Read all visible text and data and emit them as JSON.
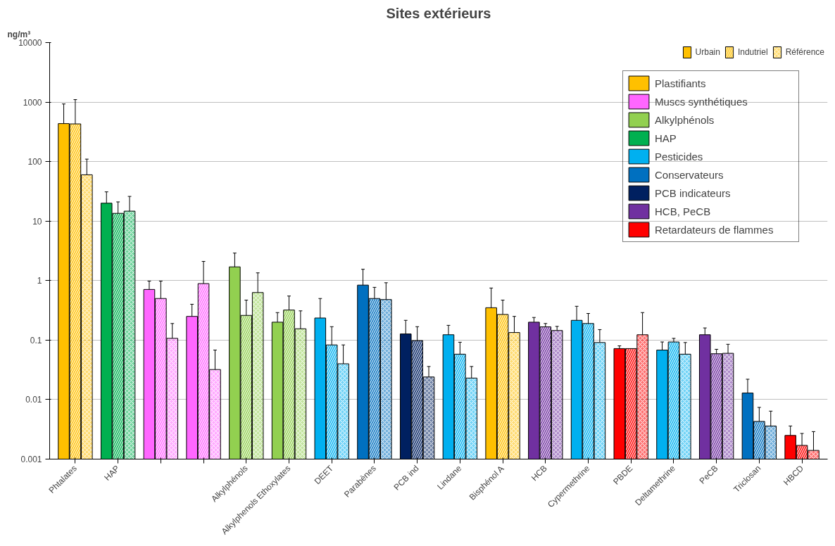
{
  "chart_data": {
    "type": "bar",
    "title": "Sites extérieurs",
    "ylabel": "ng/m³",
    "log": true,
    "grid": "y",
    "legend": "top right",
    "ylim": [
      0.001,
      10000
    ],
    "yticks": [
      0.001,
      0.01,
      0.1,
      1,
      10,
      100,
      1000,
      10000
    ],
    "categories": [
      "Phtalates",
      "HAP",
      null,
      null,
      "Alkylphénols",
      "Alkylphenols Ethoxylates",
      "DEET",
      "Parabènes",
      "PCB ind",
      "Lindane",
      "Bisphénol A",
      "HCB",
      "Cypermethrine",
      "PBDE",
      "Deltamethrine",
      "PeCB",
      "Triclosan",
      "HBCD"
    ],
    "series": [
      {
        "name": "Urbain",
        "colors": [
          "#ffc000",
          "#00b050",
          "#ff66ff",
          "#ff66ff",
          "#92d050",
          "#92d050",
          "#00b0f0",
          "#0070c0",
          "#002060",
          "#00b0f0",
          "#ffc000",
          "#7030a0",
          "#00b0f0",
          "#ff0000",
          "#00b0f0",
          "#7030a0",
          "#0070c0",
          "#ff0000"
        ],
        "values": [
          435,
          20,
          0.71,
          0.25,
          1.7,
          0.2,
          0.235,
          0.84,
          0.127,
          0.123,
          0.35,
          0.2,
          0.215,
          0.072,
          0.068,
          0.123,
          0.0129,
          0.0025
        ],
        "errors": [
          [
            435,
            930
          ],
          [
            20,
            31
          ],
          [
            0.71,
            0.98
          ],
          [
            0.25,
            0.4
          ],
          [
            1.7,
            2.9
          ],
          [
            0.2,
            0.29
          ],
          [
            0.235,
            0.5
          ],
          [
            0.84,
            1.55
          ],
          [
            0.127,
            0.215
          ],
          [
            0.123,
            0.177
          ],
          [
            0.35,
            0.75
          ],
          [
            0.2,
            0.24
          ],
          [
            0.215,
            0.37
          ],
          [
            0.072,
            0.08
          ],
          [
            0.068,
            0.093
          ],
          [
            0.123,
            0.16
          ],
          [
            0.0129,
            0.022
          ],
          [
            0.0025,
            0.0036
          ]
        ]
      },
      {
        "name": "Indutriel",
        "colors": [
          "#ffc000",
          "#00b050",
          "#ff66ff",
          "#ff66ff",
          "#92d050",
          "#92d050",
          "#00b0f0",
          "#0070c0",
          "#002060",
          "#00b0f0",
          "#ffc000",
          "#7030a0",
          "#00b0f0",
          "#ff0000",
          "#00b0f0",
          "#7030a0",
          "#0070c0",
          "#ff0000"
        ],
        "values": [
          430,
          13.5,
          0.5,
          0.89,
          0.26,
          0.32,
          0.083,
          0.5,
          0.098,
          0.058,
          0.27,
          0.167,
          0.19,
          0.072,
          0.093,
          0.059,
          0.0043,
          0.0017
        ],
        "errors": [
          [
            430,
            1100
          ],
          [
            13.5,
            21
          ],
          [
            0.5,
            0.98
          ],
          [
            0.89,
            2.1
          ],
          [
            0.26,
            0.47
          ],
          [
            0.32,
            0.55
          ],
          [
            0.083,
            0.168
          ],
          [
            0.5,
            0.77
          ],
          [
            0.098,
            0.168
          ],
          [
            0.058,
            0.092
          ],
          [
            0.27,
            0.47
          ],
          [
            0.167,
            0.19
          ],
          [
            0.19,
            0.28
          ],
          null,
          [
            0.093,
            0.107
          ],
          [
            0.059,
            0.07
          ],
          [
            0.0043,
            0.0074
          ],
          [
            0.0017,
            0.0027
          ]
        ]
      },
      {
        "name": "Référence",
        "colors": [
          "#ffc000",
          "#00b050",
          "#ff66ff",
          "#ff66ff",
          "#92d050",
          "#92d050",
          "#00b0f0",
          "#0070c0",
          "#002060",
          "#00b0f0",
          "#ffc000",
          "#7030a0",
          "#00b0f0",
          "#ff0000",
          "#00b0f0",
          "#7030a0",
          "#0070c0",
          "#ff0000"
        ],
        "values": [
          60,
          14.7,
          0.107,
          0.032,
          0.63,
          0.155,
          0.04,
          0.48,
          0.024,
          0.023,
          0.134,
          0.145,
          0.091,
          0.123,
          0.058,
          0.06,
          0.0036,
          0.0014
        ],
        "errors": [
          [
            60,
            110
          ],
          [
            14.7,
            26
          ],
          [
            0.107,
            0.19
          ],
          [
            0.032,
            0.068
          ],
          [
            0.63,
            1.35
          ],
          [
            0.155,
            0.31
          ],
          [
            0.04,
            0.083
          ],
          [
            0.48,
            0.92
          ],
          [
            0.024,
            0.036
          ],
          [
            0.023,
            0.036
          ],
          [
            0.134,
            0.25
          ],
          [
            0.145,
            0.17
          ],
          [
            0.091,
            0.15
          ],
          [
            0.123,
            0.29
          ],
          [
            0.058,
            0.091
          ],
          [
            0.06,
            0.085
          ],
          [
            0.0036,
            0.0064
          ],
          [
            0.0014,
            0.0029
          ]
        ]
      },
      {
        "name": "Plastifiants",
        "color": "#ffc000",
        "values": [
          null,
          null,
          null,
          null,
          null,
          null,
          null,
          null,
          null,
          null,
          null,
          null,
          null,
          null,
          null,
          null,
          null,
          null
        ]
      },
      {
        "name": "Muscs synthétiques",
        "color": "#ff66ff",
        "values": [
          null,
          null,
          null,
          null,
          null,
          null,
          null,
          null,
          null,
          null,
          null,
          null,
          null,
          null,
          null,
          null,
          null,
          null
        ]
      },
      {
        "name": "Alkylphénols",
        "color": "#92d050",
        "values": [
          null,
          null,
          null,
          null,
          null,
          null,
          null,
          null,
          null,
          null,
          null,
          null,
          null,
          null,
          null,
          null,
          null,
          null
        ]
      },
      {
        "name": "HAP",
        "color": "#00b050",
        "values": [
          null,
          null,
          null,
          null,
          null,
          null,
          null,
          null,
          null,
          null,
          null,
          null,
          null,
          null,
          null,
          null,
          null,
          null
        ]
      },
      {
        "name": "Pesticides",
        "color": "#00b0f0",
        "values": [
          null,
          null,
          null,
          null,
          null,
          null,
          null,
          null,
          null,
          null,
          null,
          null,
          null,
          null,
          null,
          null,
          null,
          null
        ]
      },
      {
        "name": "Conservateurs",
        "color": "#0070c0",
        "values": [
          null,
          null,
          null,
          null,
          null,
          null,
          null,
          null,
          null,
          null,
          null,
          null,
          null,
          null,
          null,
          null,
          null,
          null
        ]
      },
      {
        "name": "PCB indicateurs",
        "color": "#002060",
        "values": [
          null,
          null,
          null,
          null,
          null,
          null,
          null,
          null,
          null,
          null,
          null,
          null,
          null,
          null,
          null,
          null,
          null,
          null
        ]
      },
      {
        "name": "HCB, PeCB",
        "color": "#7030a0",
        "values": [
          null,
          null,
          null,
          null,
          null,
          null,
          null,
          null,
          null,
          null,
          null,
          null,
          null,
          null,
          null,
          null,
          null,
          null
        ]
      },
      {
        "name": "Retardateurs de flammes",
        "color": "#ff0000",
        "values": [
          null,
          null,
          null,
          null,
          null,
          null,
          null,
          null,
          null,
          null,
          null,
          null,
          null,
          null,
          null,
          null,
          null,
          null
        ]
      }
    ]
  }
}
